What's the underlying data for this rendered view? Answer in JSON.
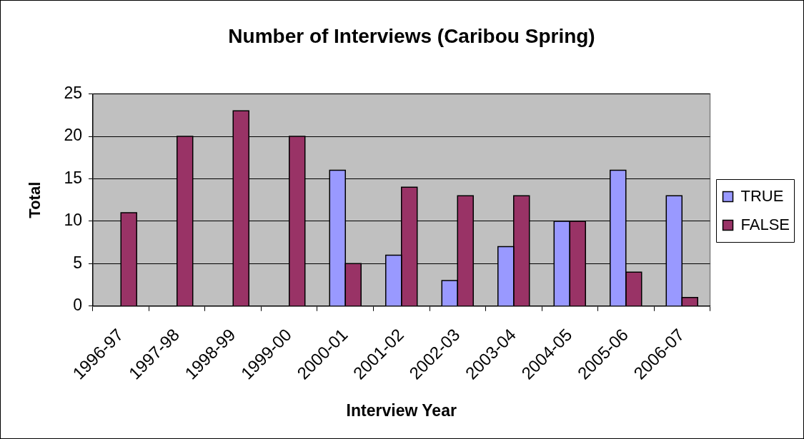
{
  "chart_data": {
    "type": "bar",
    "title": "Number of Interviews (Caribou Spring)",
    "xlabel": "Interview Year",
    "ylabel": "Total",
    "categories": [
      "1996-97",
      "1997-98",
      "1998-99",
      "1999-00",
      "2000-01",
      "2001-02",
      "2002-03",
      "2003-04",
      "2004-05",
      "2005-06",
      "2006-07"
    ],
    "series": [
      {
        "name": "TRUE",
        "color": "#9999ff",
        "values": [
          null,
          null,
          null,
          null,
          16,
          6,
          3,
          7,
          10,
          16,
          13
        ]
      },
      {
        "name": "FALSE",
        "color": "#993366",
        "values": [
          11,
          20,
          23,
          20,
          5,
          14,
          13,
          13,
          10,
          4,
          1
        ]
      }
    ],
    "ylim": [
      0,
      25
    ],
    "yticks": [
      0,
      5,
      10,
      15,
      20,
      25
    ],
    "grid": "y",
    "legend": "right"
  }
}
